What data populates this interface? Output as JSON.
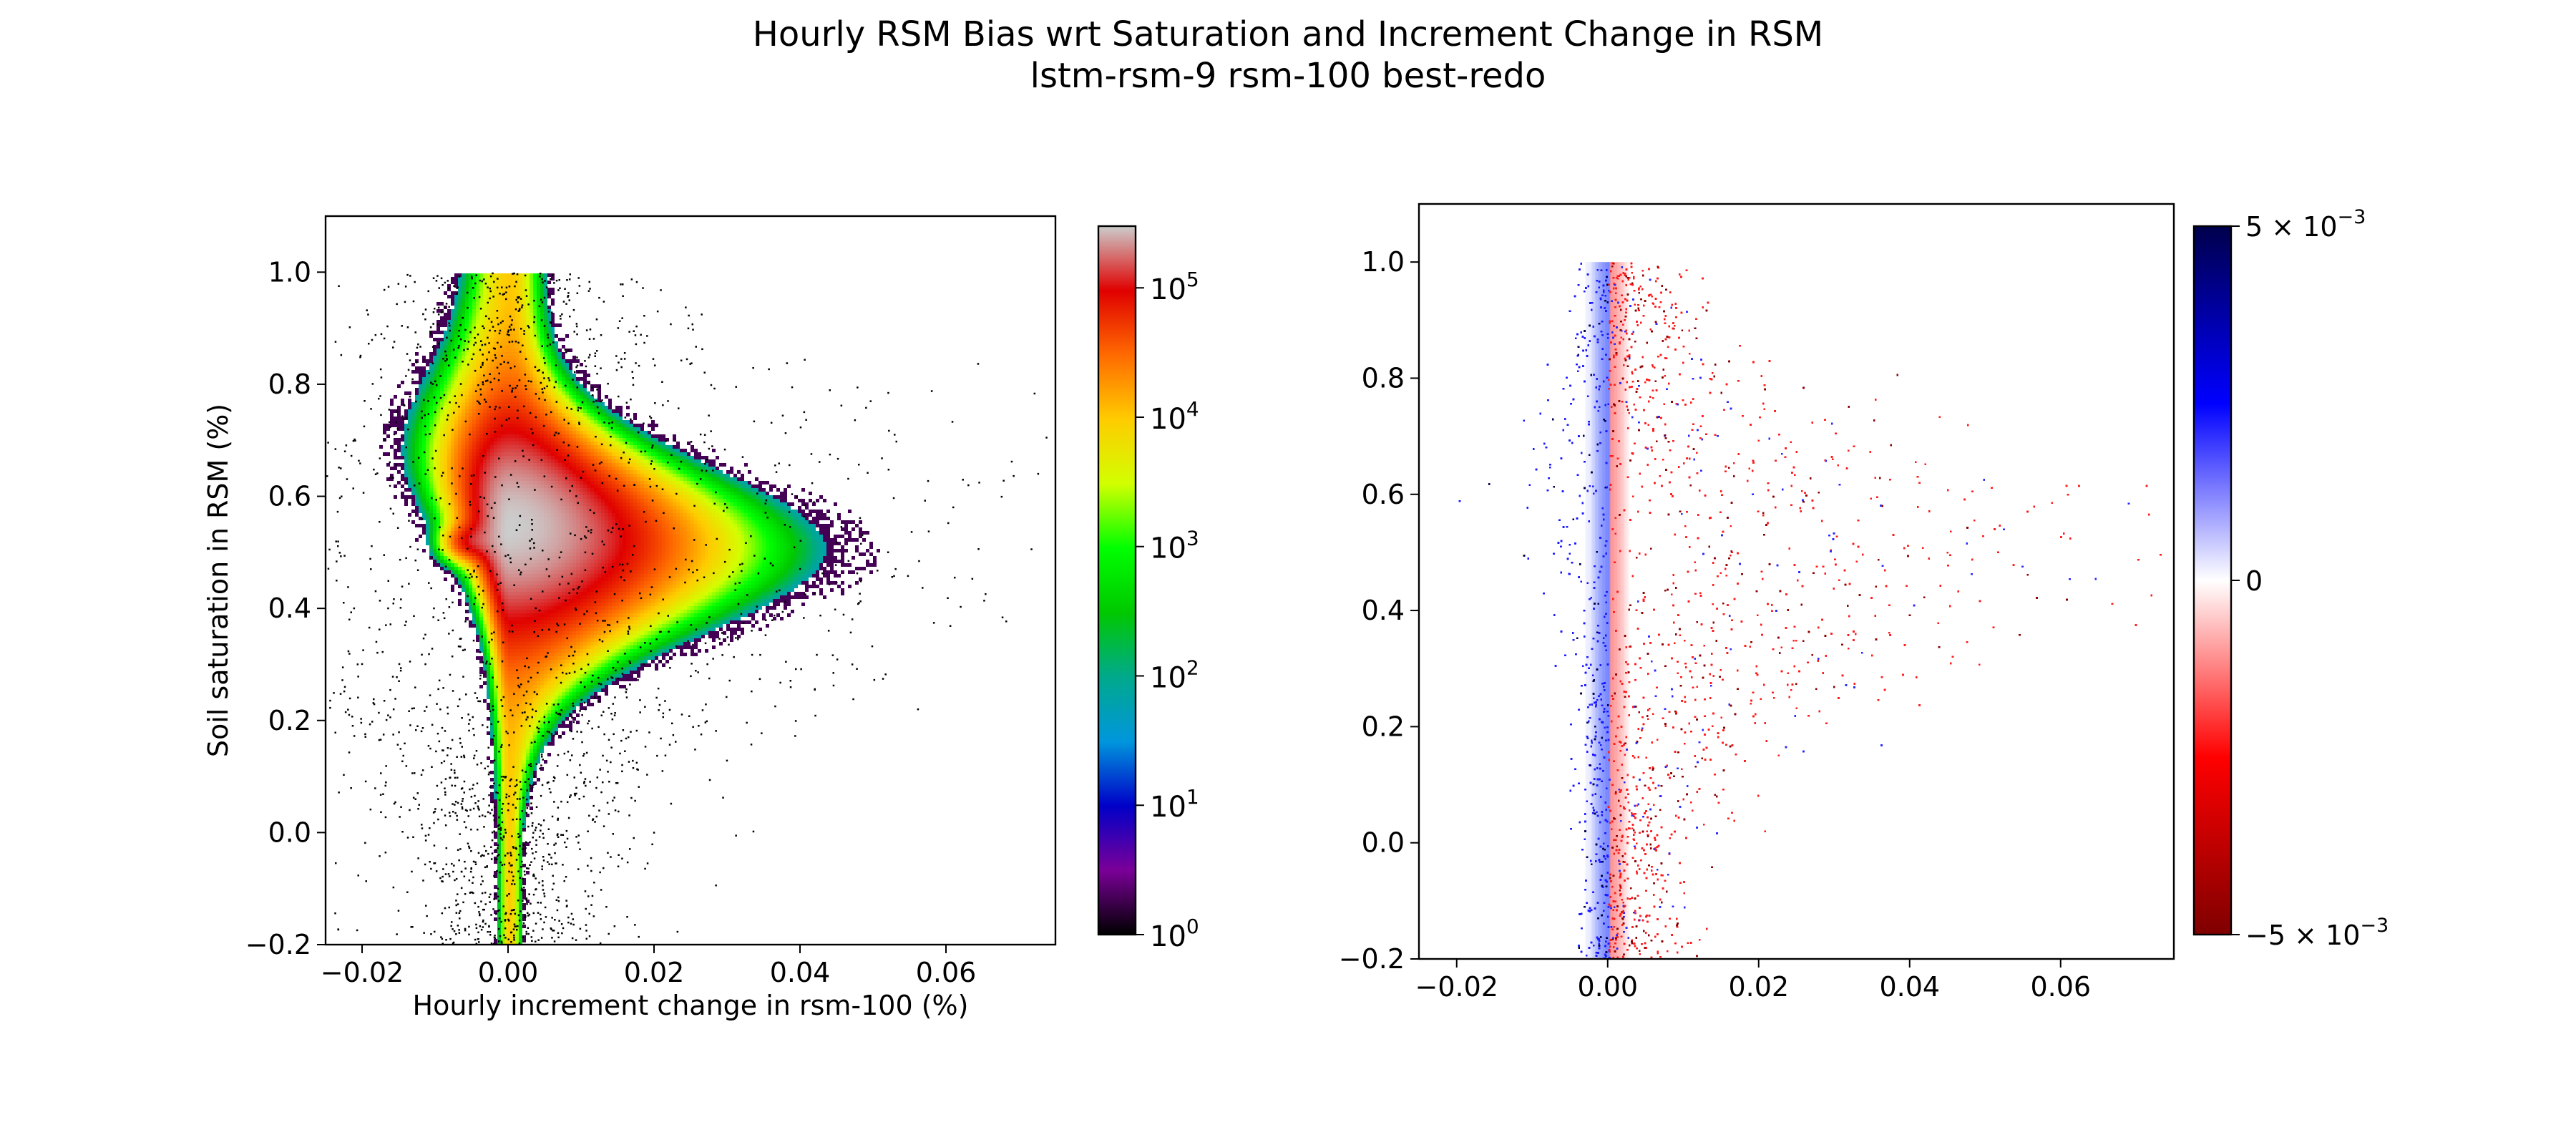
{
  "figure": {
    "title": "Hourly RSM Bias wrt Saturation and Increment Change in RSM",
    "subtitle": "lstm-rsm-9 rsm-100 best-redo"
  },
  "chart_data": [
    {
      "type": "heatmap",
      "panel": "left",
      "description_color_scale": "log count (nipy_spectral-like)",
      "xlabel": "Hourly increment change in rsm-100 (%)",
      "ylabel": "Soil saturation in RSM (%)",
      "xlim": [
        -0.025,
        0.075
      ],
      "ylim": [
        -0.2,
        1.1
      ],
      "xticks": [
        -0.02,
        0.0,
        0.02,
        0.04,
        0.06
      ],
      "xtick_labels": [
        "−0.02",
        "0.00",
        "0.02",
        "0.04",
        "0.06"
      ],
      "yticks": [
        -0.2,
        0.0,
        0.2,
        0.4,
        0.6,
        0.8,
        1.0
      ],
      "ytick_labels": [
        "−0.2",
        "0.0",
        "0.2",
        "0.4",
        "0.6",
        "0.8",
        "1.0"
      ],
      "colorbar": {
        "scale": "log",
        "range": [
          1,
          300000
        ],
        "ticks": [
          1,
          10,
          100,
          1000,
          10000,
          100000
        ],
        "tick_bases": [
          "10",
          "10",
          "10",
          "10",
          "10",
          "10"
        ],
        "tick_exponents": [
          "0",
          "1",
          "2",
          "3",
          "4",
          "5"
        ],
        "colors": [
          "#000000",
          "#7a0098",
          "#0000c8",
          "#0096dc",
          "#00a98c",
          "#00c800",
          "#00ff00",
          "#d2ff00",
          "#ffcc00",
          "#ff6a00",
          "#e00000",
          "#cccccc"
        ]
      },
      "grid": false
    },
    {
      "type": "scatter",
      "panel": "right",
      "description_color_scale": "diverging bias (seismic_r-like)",
      "xlabel": "",
      "ylabel": "",
      "xlim": [
        -0.025,
        0.075
      ],
      "ylim": [
        -0.2,
        1.1
      ],
      "xticks": [
        -0.02,
        0.0,
        0.02,
        0.04,
        0.06
      ],
      "xtick_labels": [
        "−0.02",
        "0.00",
        "0.02",
        "0.04",
        "0.06"
      ],
      "yticks": [
        -0.2,
        0.0,
        0.2,
        0.4,
        0.6,
        0.8,
        1.0
      ],
      "ytick_labels": [
        "−0.2",
        "0.0",
        "0.2",
        "0.4",
        "0.6",
        "0.8",
        "1.0"
      ],
      "colorbar": {
        "scale": "linear",
        "range": [
          -0.005,
          0.005
        ],
        "top_label_base": "5 × 10",
        "top_label_exp": "−3",
        "mid_label": "0",
        "bottom_label_base": "−5 × 10",
        "bottom_label_exp": "−3",
        "colors": [
          "#7f0000",
          "#ff0000",
          "#ffffff",
          "#0000ff",
          "#00004c"
        ]
      },
      "grid": false
    }
  ]
}
